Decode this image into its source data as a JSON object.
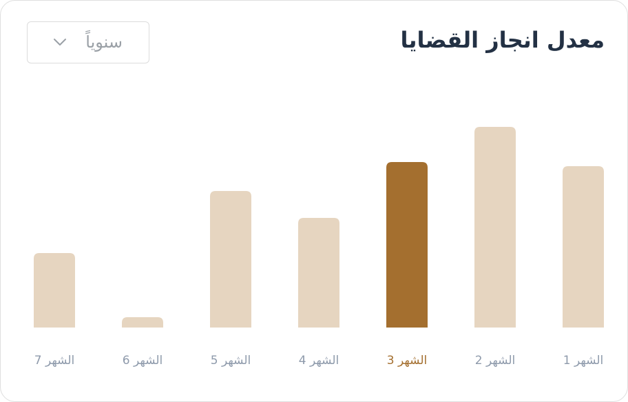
{
  "header": {
    "title": "معدل انجاز القضايا",
    "period_selected": "سنوياً"
  },
  "colors": {
    "bar_default": "#e6d5c0",
    "bar_highlight": "#a46f2f",
    "label_default": "#8e9aab",
    "label_highlight": "#a46f2f"
  },
  "chart_data": {
    "type": "bar",
    "direction": "rtl",
    "categories": [
      "الشهر 1",
      "الشهر 2",
      "الشهر 3",
      "الشهر 4",
      "الشهر 5",
      "الشهر 6",
      "الشهر 7"
    ],
    "values": [
      78,
      97,
      80,
      53,
      66,
      5,
      36
    ],
    "highlighted_index": 2,
    "ylim": [
      0,
      100
    ],
    "title": "",
    "xlabel": "",
    "ylabel": "",
    "grid": false,
    "legend": "none"
  }
}
